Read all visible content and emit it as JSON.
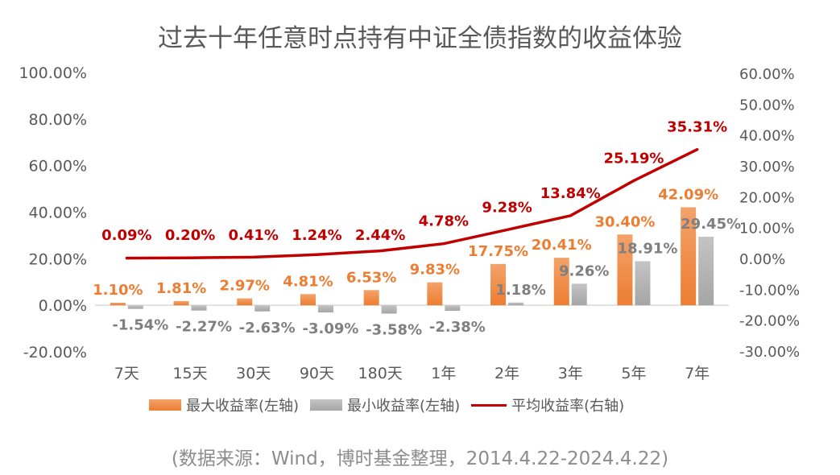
{
  "title": "过去十年任意时点持有中证全债指数的收益体验",
  "source": "(数据来源：Wind，博时基金整理，2014.4.22-2024.4.22)",
  "colors": {
    "max": "#ed7d31",
    "min": "#a5a5a5",
    "avg": "#c00000",
    "axis": "#595959"
  },
  "chart_data": {
    "type": "bar",
    "categories": [
      "7天",
      "15天",
      "30天",
      "90天",
      "180天",
      "1年",
      "2年",
      "3年",
      "5年",
      "7年"
    ],
    "series": [
      {
        "name": "最大收益率(左轴)",
        "type": "bar",
        "axis": "left",
        "values": [
          1.1,
          1.81,
          2.97,
          4.81,
          6.53,
          9.83,
          17.75,
          20.41,
          30.4,
          42.09
        ],
        "labels": [
          "1.10%",
          "1.81%",
          "2.97%",
          "4.81%",
          "6.53%",
          "9.83%",
          "17.75%",
          "20.41%",
          "30.40%",
          "42.09%"
        ]
      },
      {
        "name": "最小收益率(左轴)",
        "type": "bar",
        "axis": "left",
        "values": [
          -1.54,
          -2.27,
          -2.63,
          -3.09,
          -3.58,
          -2.38,
          1.18,
          9.26,
          18.91,
          29.45
        ],
        "labels": [
          "-1.54%",
          "-2.27%",
          "-2.63%",
          "-3.09%",
          "-3.58%",
          "-2.38%",
          "1.18%",
          "9.26%",
          "18.91%",
          "29.45%"
        ]
      },
      {
        "name": "平均收益率(右轴)",
        "type": "line",
        "axis": "right",
        "values": [
          0.09,
          0.2,
          0.41,
          1.24,
          2.44,
          4.78,
          9.28,
          13.84,
          25.19,
          35.31
        ],
        "labels": [
          "0.09%",
          "0.20%",
          "0.41%",
          "1.24%",
          "2.44%",
          "4.78%",
          "9.28%",
          "13.84%",
          "25.19%",
          "35.31%"
        ]
      }
    ],
    "left_axis": {
      "ylim": [
        -20,
        100
      ],
      "ticks": [
        "-20.00%",
        "0.00%",
        "20.00%",
        "40.00%",
        "60.00%",
        "80.00%",
        "100.00%"
      ],
      "tick_values": [
        -20,
        0,
        20,
        40,
        60,
        80,
        100
      ]
    },
    "right_axis": {
      "ylim": [
        -30,
        60
      ],
      "ticks": [
        "-30.00%",
        "-20.00%",
        "-10.00%",
        "0.00%",
        "10.00%",
        "20.00%",
        "30.00%",
        "40.00%",
        "50.00%",
        "60.00%"
      ],
      "tick_values": [
        -30,
        -20,
        -10,
        0,
        10,
        20,
        30,
        40,
        50,
        60
      ]
    },
    "grid": false,
    "legend_position": "bottom"
  }
}
